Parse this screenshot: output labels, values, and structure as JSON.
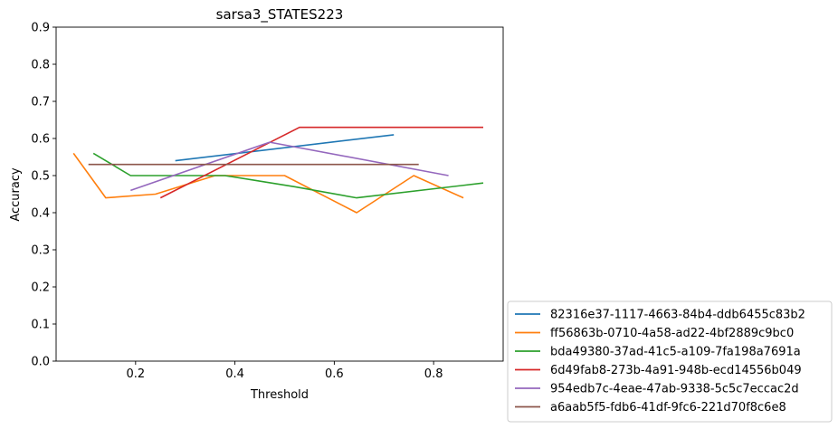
{
  "chart_data": {
    "type": "line",
    "title": "sarsa3_STATES223",
    "xlabel": "Threshold",
    "ylabel": "Accuracy",
    "xlim": [
      0.04,
      0.94
    ],
    "ylim": [
      0.0,
      0.9
    ],
    "xticks": [
      0.2,
      0.4,
      0.6,
      0.8
    ],
    "xtick_labels": [
      "0.2",
      "0.4",
      "0.6",
      "0.8"
    ],
    "yticks": [
      0.0,
      0.1,
      0.2,
      0.3,
      0.4,
      0.5,
      0.6,
      0.7,
      0.8,
      0.9
    ],
    "ytick_labels": [
      "0.0",
      "0.1",
      "0.2",
      "0.3",
      "0.4",
      "0.5",
      "0.6",
      "0.7",
      "0.8",
      "0.9"
    ],
    "grid": false,
    "legend_position": "outside-lower-right",
    "series": [
      {
        "name": "82316e37-1117-4663-84b4-ddb6455c83b2",
        "color": "#1f77b4",
        "x": [
          0.28,
          0.72
        ],
        "y": [
          0.54,
          0.61
        ]
      },
      {
        "name": "ff56863b-0710-4a58-ad22-4bf2889c9bc0",
        "color": "#ff7f0e",
        "x": [
          0.075,
          0.14,
          0.24,
          0.36,
          0.5,
          0.645,
          0.76,
          0.86
        ],
        "y": [
          0.56,
          0.44,
          0.45,
          0.5,
          0.5,
          0.4,
          0.5,
          0.44
        ]
      },
      {
        "name": "bda49380-37ad-41c5-a109-7fa198a7691a",
        "color": "#2ca02c",
        "x": [
          0.115,
          0.19,
          0.38,
          0.52,
          0.645,
          0.9
        ],
        "y": [
          0.56,
          0.5,
          0.5,
          0.47,
          0.44,
          0.48
        ]
      },
      {
        "name": "6d49fab8-273b-4a91-948b-ecd14556b049",
        "color": "#d62728",
        "x": [
          0.25,
          0.53,
          0.9
        ],
        "y": [
          0.44,
          0.63,
          0.63
        ]
      },
      {
        "name": "954edb7c-4eae-47ab-9338-5c5c7eccac2d",
        "color": "#9467bd",
        "x": [
          0.19,
          0.47,
          0.83
        ],
        "y": [
          0.46,
          0.59,
          0.5
        ]
      },
      {
        "name": "a6aab5f5-fdb6-41df-9fc6-221d70f8c6e8",
        "color": "#8c564b",
        "x": [
          0.105,
          0.77
        ],
        "y": [
          0.53,
          0.53
        ]
      }
    ]
  }
}
